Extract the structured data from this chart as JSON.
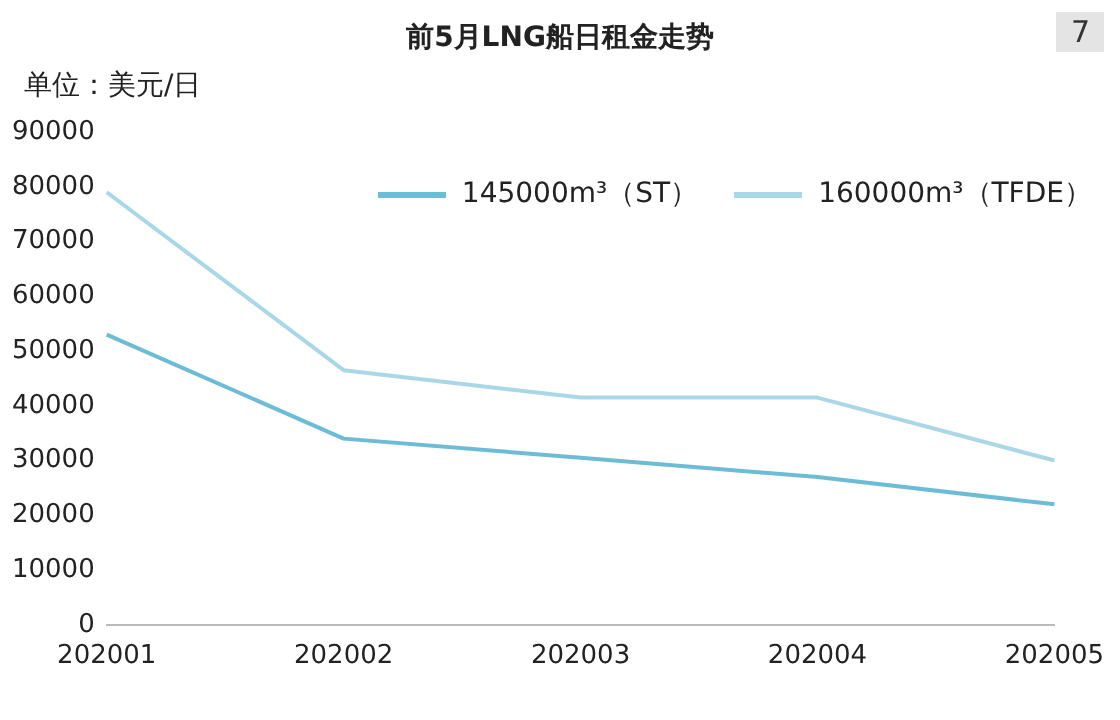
{
  "chart_data": {
    "type": "line",
    "title": "前5月LNG船日租金走势",
    "ylabel": "单位：美元/日",
    "annotations": [
      "7"
    ],
    "categories": [
      "202001",
      "202002",
      "202003",
      "202004",
      "202005"
    ],
    "series": [
      {
        "name": "145000m³（ST）",
        "color": "#6cbcd6",
        "values": [
          53000,
          34000,
          30500,
          27000,
          22000
        ]
      },
      {
        "name": "160000m³（TFDE）",
        "color": "#a9d7e8",
        "values": [
          79000,
          46500,
          41500,
          41500,
          30000
        ]
      }
    ],
    "ylim": [
      0,
      90000
    ],
    "yticks": [
      0,
      10000,
      20000,
      30000,
      40000,
      50000,
      60000,
      70000,
      80000,
      90000
    ],
    "grid": false,
    "legend": "top right",
    "marker": "none",
    "line_style": "solid"
  }
}
